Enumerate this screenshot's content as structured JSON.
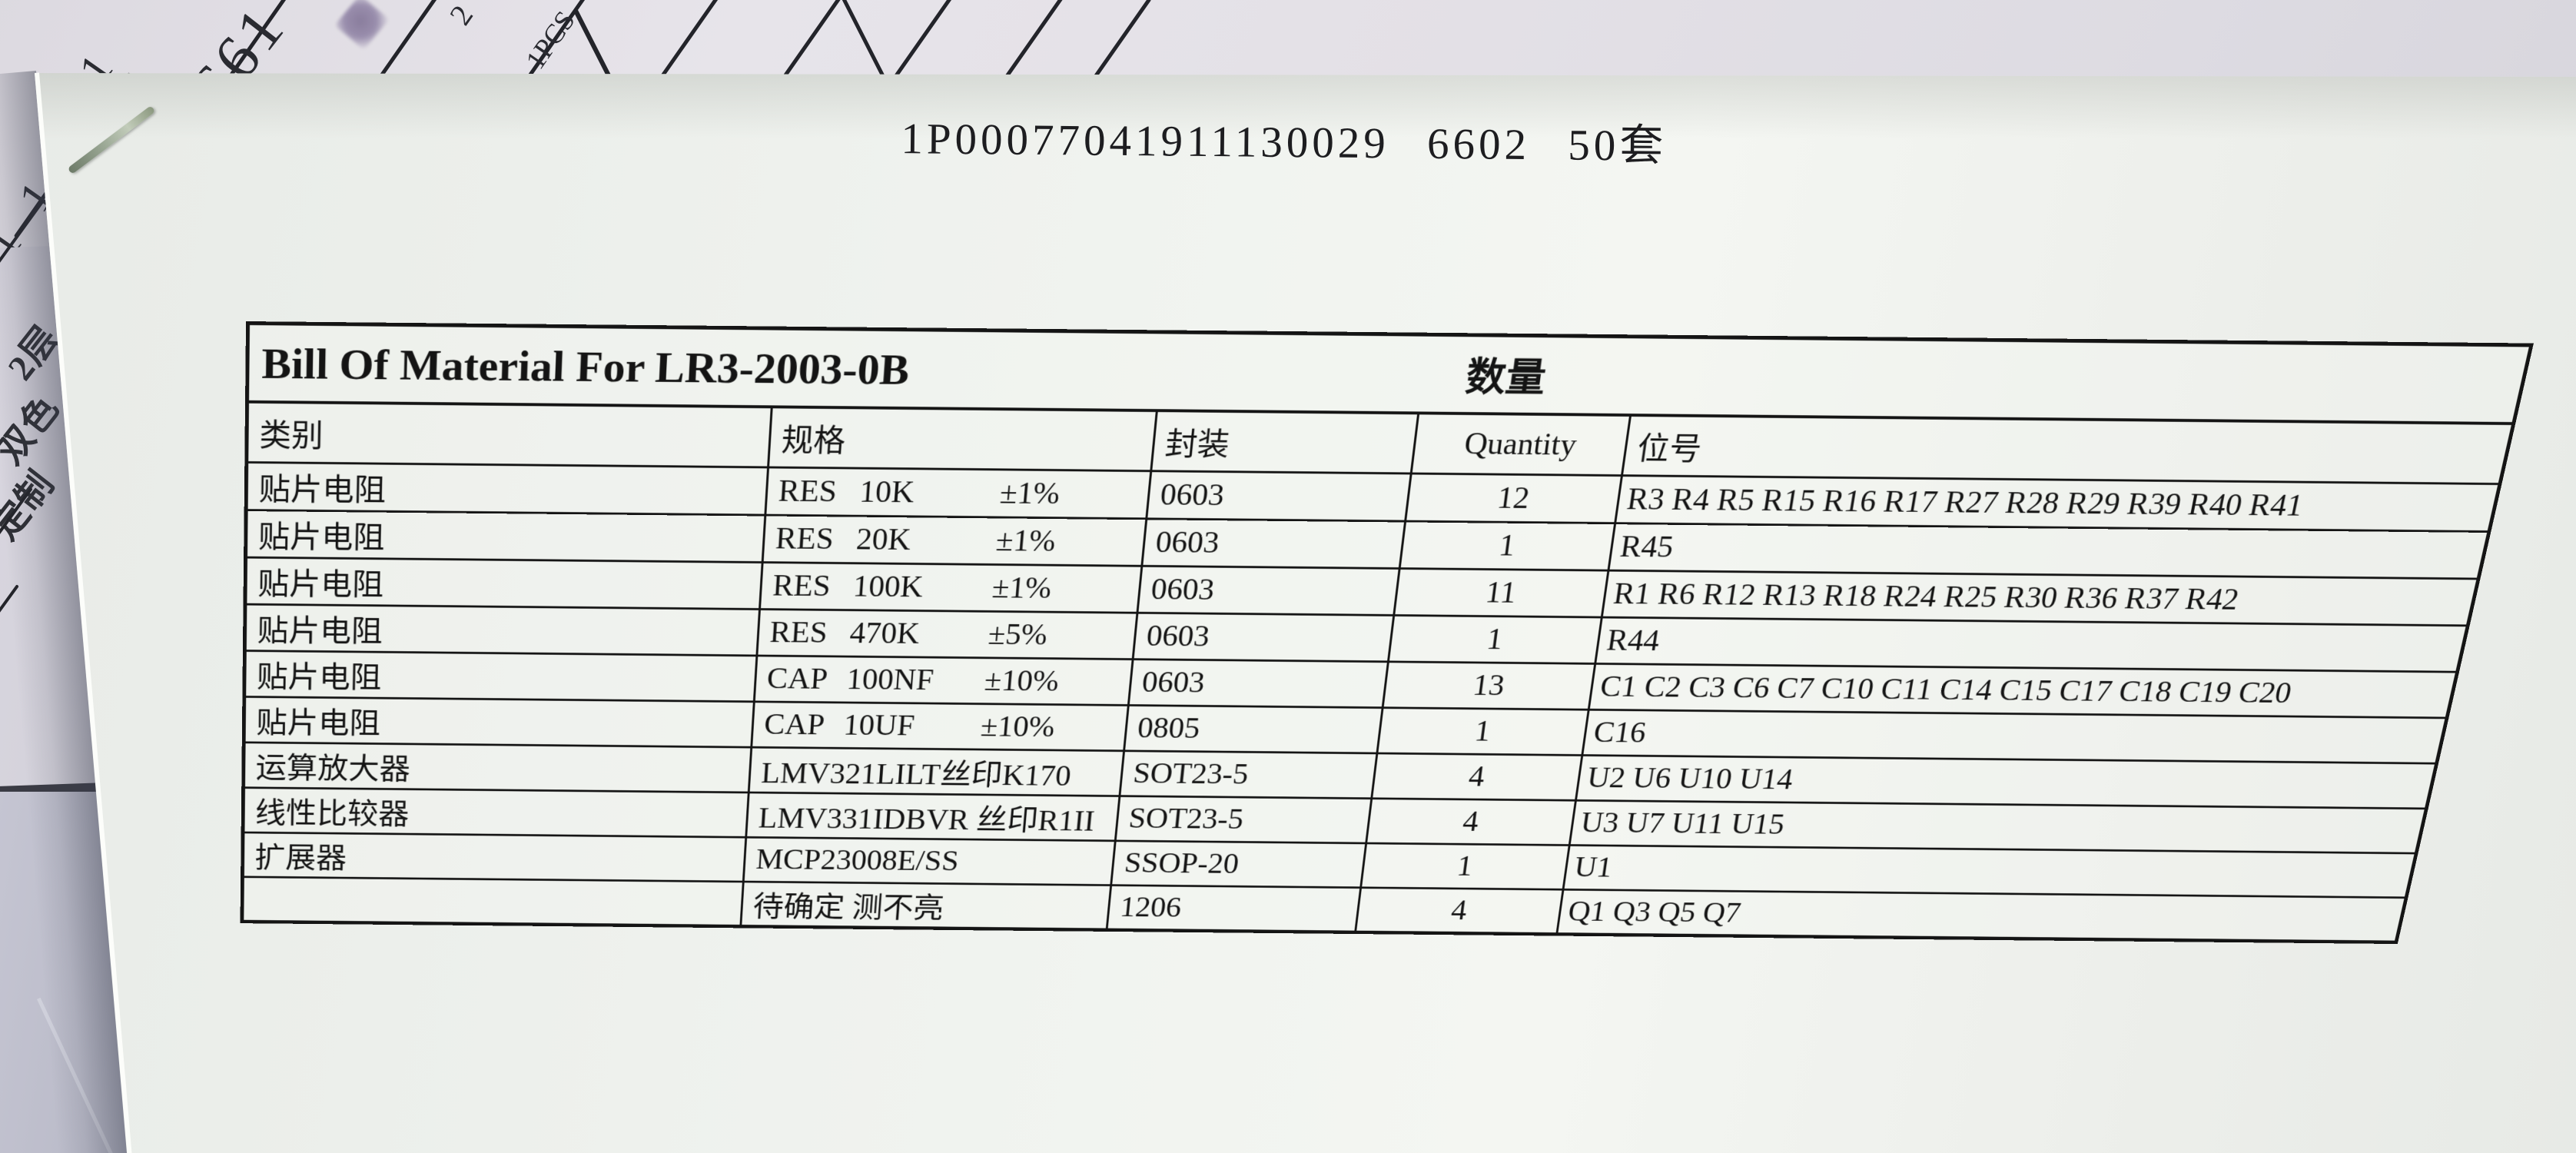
{
  "title_line": "1P00077041911130029  6602  50套",
  "bom": {
    "title": "Bill Of Material For LR3-2003-0B",
    "qty_label": "数量",
    "headers": {
      "category": "类别",
      "spec": "规格",
      "package": "封装",
      "quantity": "Quantity",
      "designators": "位号"
    },
    "rows": [
      {
        "category": "贴片电阻",
        "spec": [
          "RES",
          "10K",
          "±1%"
        ],
        "package": "0603",
        "quantity": "12",
        "designators": "R3 R4 R5 R15 R16 R17 R27 R28 R29 R39 R40 R41"
      },
      {
        "category": "贴片电阻",
        "spec": [
          "RES",
          "20K",
          "±1%"
        ],
        "package": "0603",
        "quantity": "1",
        "designators": "R45"
      },
      {
        "category": "贴片电阻",
        "spec": [
          "RES",
          "100K",
          "±1%"
        ],
        "package": "0603",
        "quantity": "11",
        "designators": "R1 R6 R12 R13 R18 R24 R25 R30 R36 R37 R42"
      },
      {
        "category": "贴片电阻",
        "spec": [
          "RES",
          "470K",
          "±5%"
        ],
        "package": "0603",
        "quantity": "1",
        "designators": "R44"
      },
      {
        "category": "贴片电阻",
        "spec": [
          "CAP",
          "100NF",
          "±10%"
        ],
        "package": "0603",
        "quantity": "13",
        "designators": "C1 C2 C3 C6 C7 C10 C11 C14 C15 C17 C18 C19 C20"
      },
      {
        "category": "贴片电阻",
        "spec": [
          "CAP",
          "10UF",
          "±10%"
        ],
        "package": "0805",
        "quantity": "1",
        "designators": "C16"
      },
      {
        "category": "运算放大器",
        "spec": [
          "LMV321LILT丝印K170"
        ],
        "package": "SOT23-5",
        "quantity": "4",
        "designators": "U2 U6 U10 U14"
      },
      {
        "category": "线性比较器",
        "spec": [
          "LMV331IDBVR 丝印R1II"
        ],
        "package": "SOT23-5",
        "quantity": "4",
        "designators": "U3 U7 U11 U15"
      },
      {
        "category": "扩展器",
        "spec": [
          "MCP23008E/SS"
        ],
        "package": "SSOP-20",
        "quantity": "1",
        "designators": "U1"
      },
      {
        "category": "",
        "spec": [
          "待确定  测不亮"
        ],
        "package": "1206",
        "quantity": "4",
        "designators": "Q1 Q3 Q5 Q7"
      }
    ]
  },
  "background_texts": {
    "handwritten_number": "661",
    "fragment_ones": "1 1",
    "fragment_one": "1",
    "fragment_two": "2",
    "fragment_pcs": "1PCS",
    "left_paper_lines": [
      "2层",
      "双色",
      "定制"
    ]
  },
  "colors": {
    "paper_main": "#f1f3ef",
    "paper_top": "#e6e3e9",
    "paper_left": "#d6d3dc",
    "paper_bottom_left": "#b7b8c6",
    "desk": "#3a3b44",
    "table_line": "#141414",
    "ink": "#141414"
  }
}
